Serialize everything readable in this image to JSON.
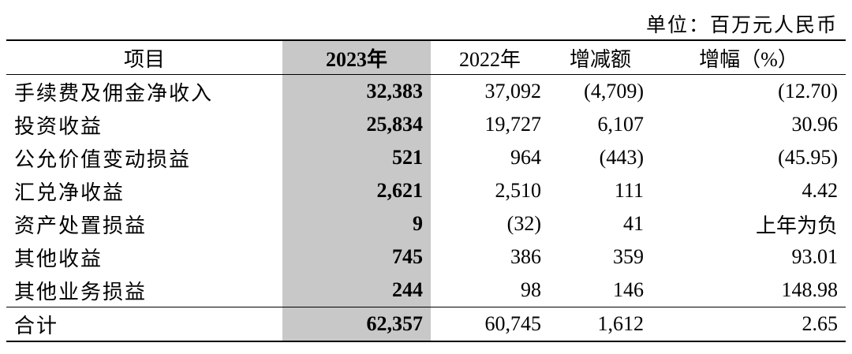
{
  "unit": "单位：百万元人民币",
  "table": {
    "header": [
      "项目",
      "2023年",
      "2022年",
      "增减额",
      "增幅（%）"
    ],
    "rows": [
      [
        "手续费及佣金净收入",
        "32,383",
        "37,092",
        "(4,709)",
        "(12.70)"
      ],
      [
        "投资收益",
        "25,834",
        "19,727",
        "6,107",
        "30.96"
      ],
      [
        "公允价值变动损益",
        "521",
        "964",
        "(443)",
        "(45.95)"
      ],
      [
        "汇兑净收益",
        "2,621",
        "2,510",
        "111",
        "4.42"
      ],
      [
        "资产处置损益",
        "9",
        "(32)",
        "41",
        "上年为负"
      ],
      [
        "其他收益",
        "745",
        "386",
        "359",
        "93.01"
      ],
      [
        "其他业务损益",
        "244",
        "98",
        "146",
        "148.98"
      ],
      [
        "合计",
        "62,357",
        "60,745",
        "1,612",
        "2.65"
      ]
    ]
  }
}
